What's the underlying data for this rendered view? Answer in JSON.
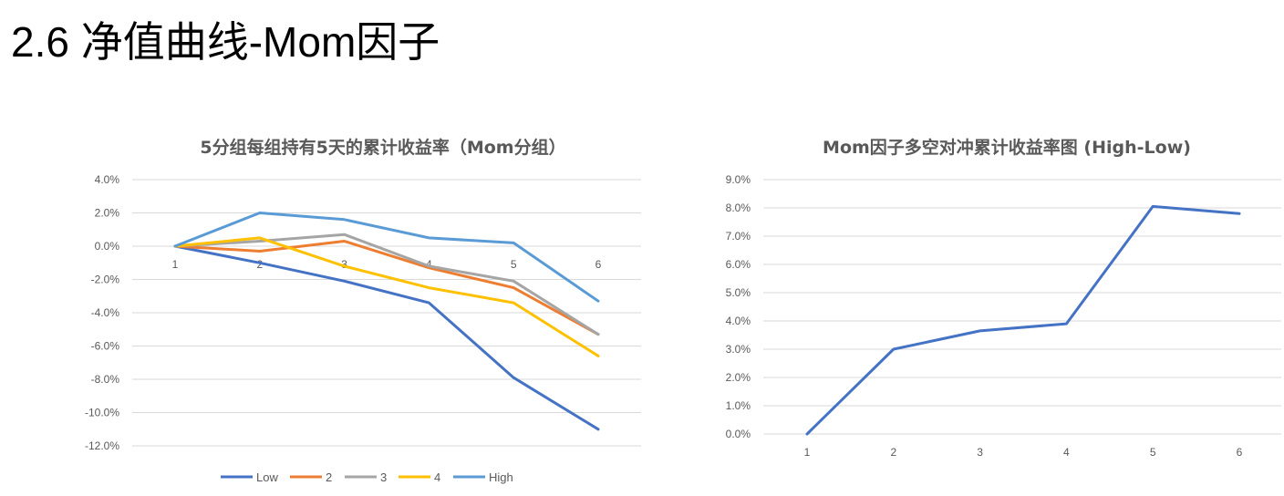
{
  "slide": {
    "title": "2.6 净值曲线-Mom因子"
  },
  "chart_data": [
    {
      "type": "line",
      "title": "5分组每组持有5天的累计收益率（Mom分组）",
      "categories": [
        "1",
        "2",
        "3",
        "4",
        "5",
        "6"
      ],
      "ylim": [
        -12,
        4
      ],
      "yticks": [
        4,
        2,
        0,
        -2,
        -4,
        -6,
        -8,
        -10,
        -12
      ],
      "ytick_labels": [
        "4.0%",
        "2.0%",
        "0.0%",
        "-2.0%",
        "-4.0%",
        "-6.0%",
        "-8.0%",
        "-10.0%",
        "-12.0%"
      ],
      "grid": true,
      "legend_position": "bottom",
      "series": [
        {
          "name": "Low",
          "color": "#4472C4",
          "values": [
            0,
            -1.0,
            -2.1,
            -3.4,
            -7.9,
            -11.0
          ]
        },
        {
          "name": "2",
          "color": "#ED7D31",
          "values": [
            0,
            -0.3,
            0.3,
            -1.3,
            -2.5,
            -5.3
          ]
        },
        {
          "name": "3",
          "color": "#A5A5A5",
          "values": [
            0,
            0.3,
            0.7,
            -1.2,
            -2.1,
            -5.3
          ]
        },
        {
          "name": "4",
          "color": "#FFC000",
          "values": [
            0,
            0.5,
            -1.2,
            -2.5,
            -3.4,
            -6.6
          ]
        },
        {
          "name": "High",
          "color": "#5B9BD5",
          "values": [
            0,
            2.0,
            1.6,
            0.5,
            0.2,
            -3.3
          ]
        }
      ]
    },
    {
      "type": "line",
      "title": "Mom因子多空对冲累计收益率图 (High-Low)",
      "categories": [
        "1",
        "2",
        "3",
        "4",
        "5",
        "6"
      ],
      "ylim": [
        0,
        9
      ],
      "yticks": [
        9,
        8,
        7,
        6,
        5,
        4,
        3,
        2,
        1,
        0
      ],
      "ytick_labels": [
        "9.0%",
        "8.0%",
        "7.0%",
        "6.0%",
        "5.0%",
        "4.0%",
        "3.0%",
        "2.0%",
        "1.0%",
        "0.0%"
      ],
      "grid": true,
      "series": [
        {
          "color": "#4472C4",
          "values": [
            0,
            3.0,
            3.65,
            3.9,
            8.05,
            7.8
          ]
        }
      ]
    }
  ]
}
